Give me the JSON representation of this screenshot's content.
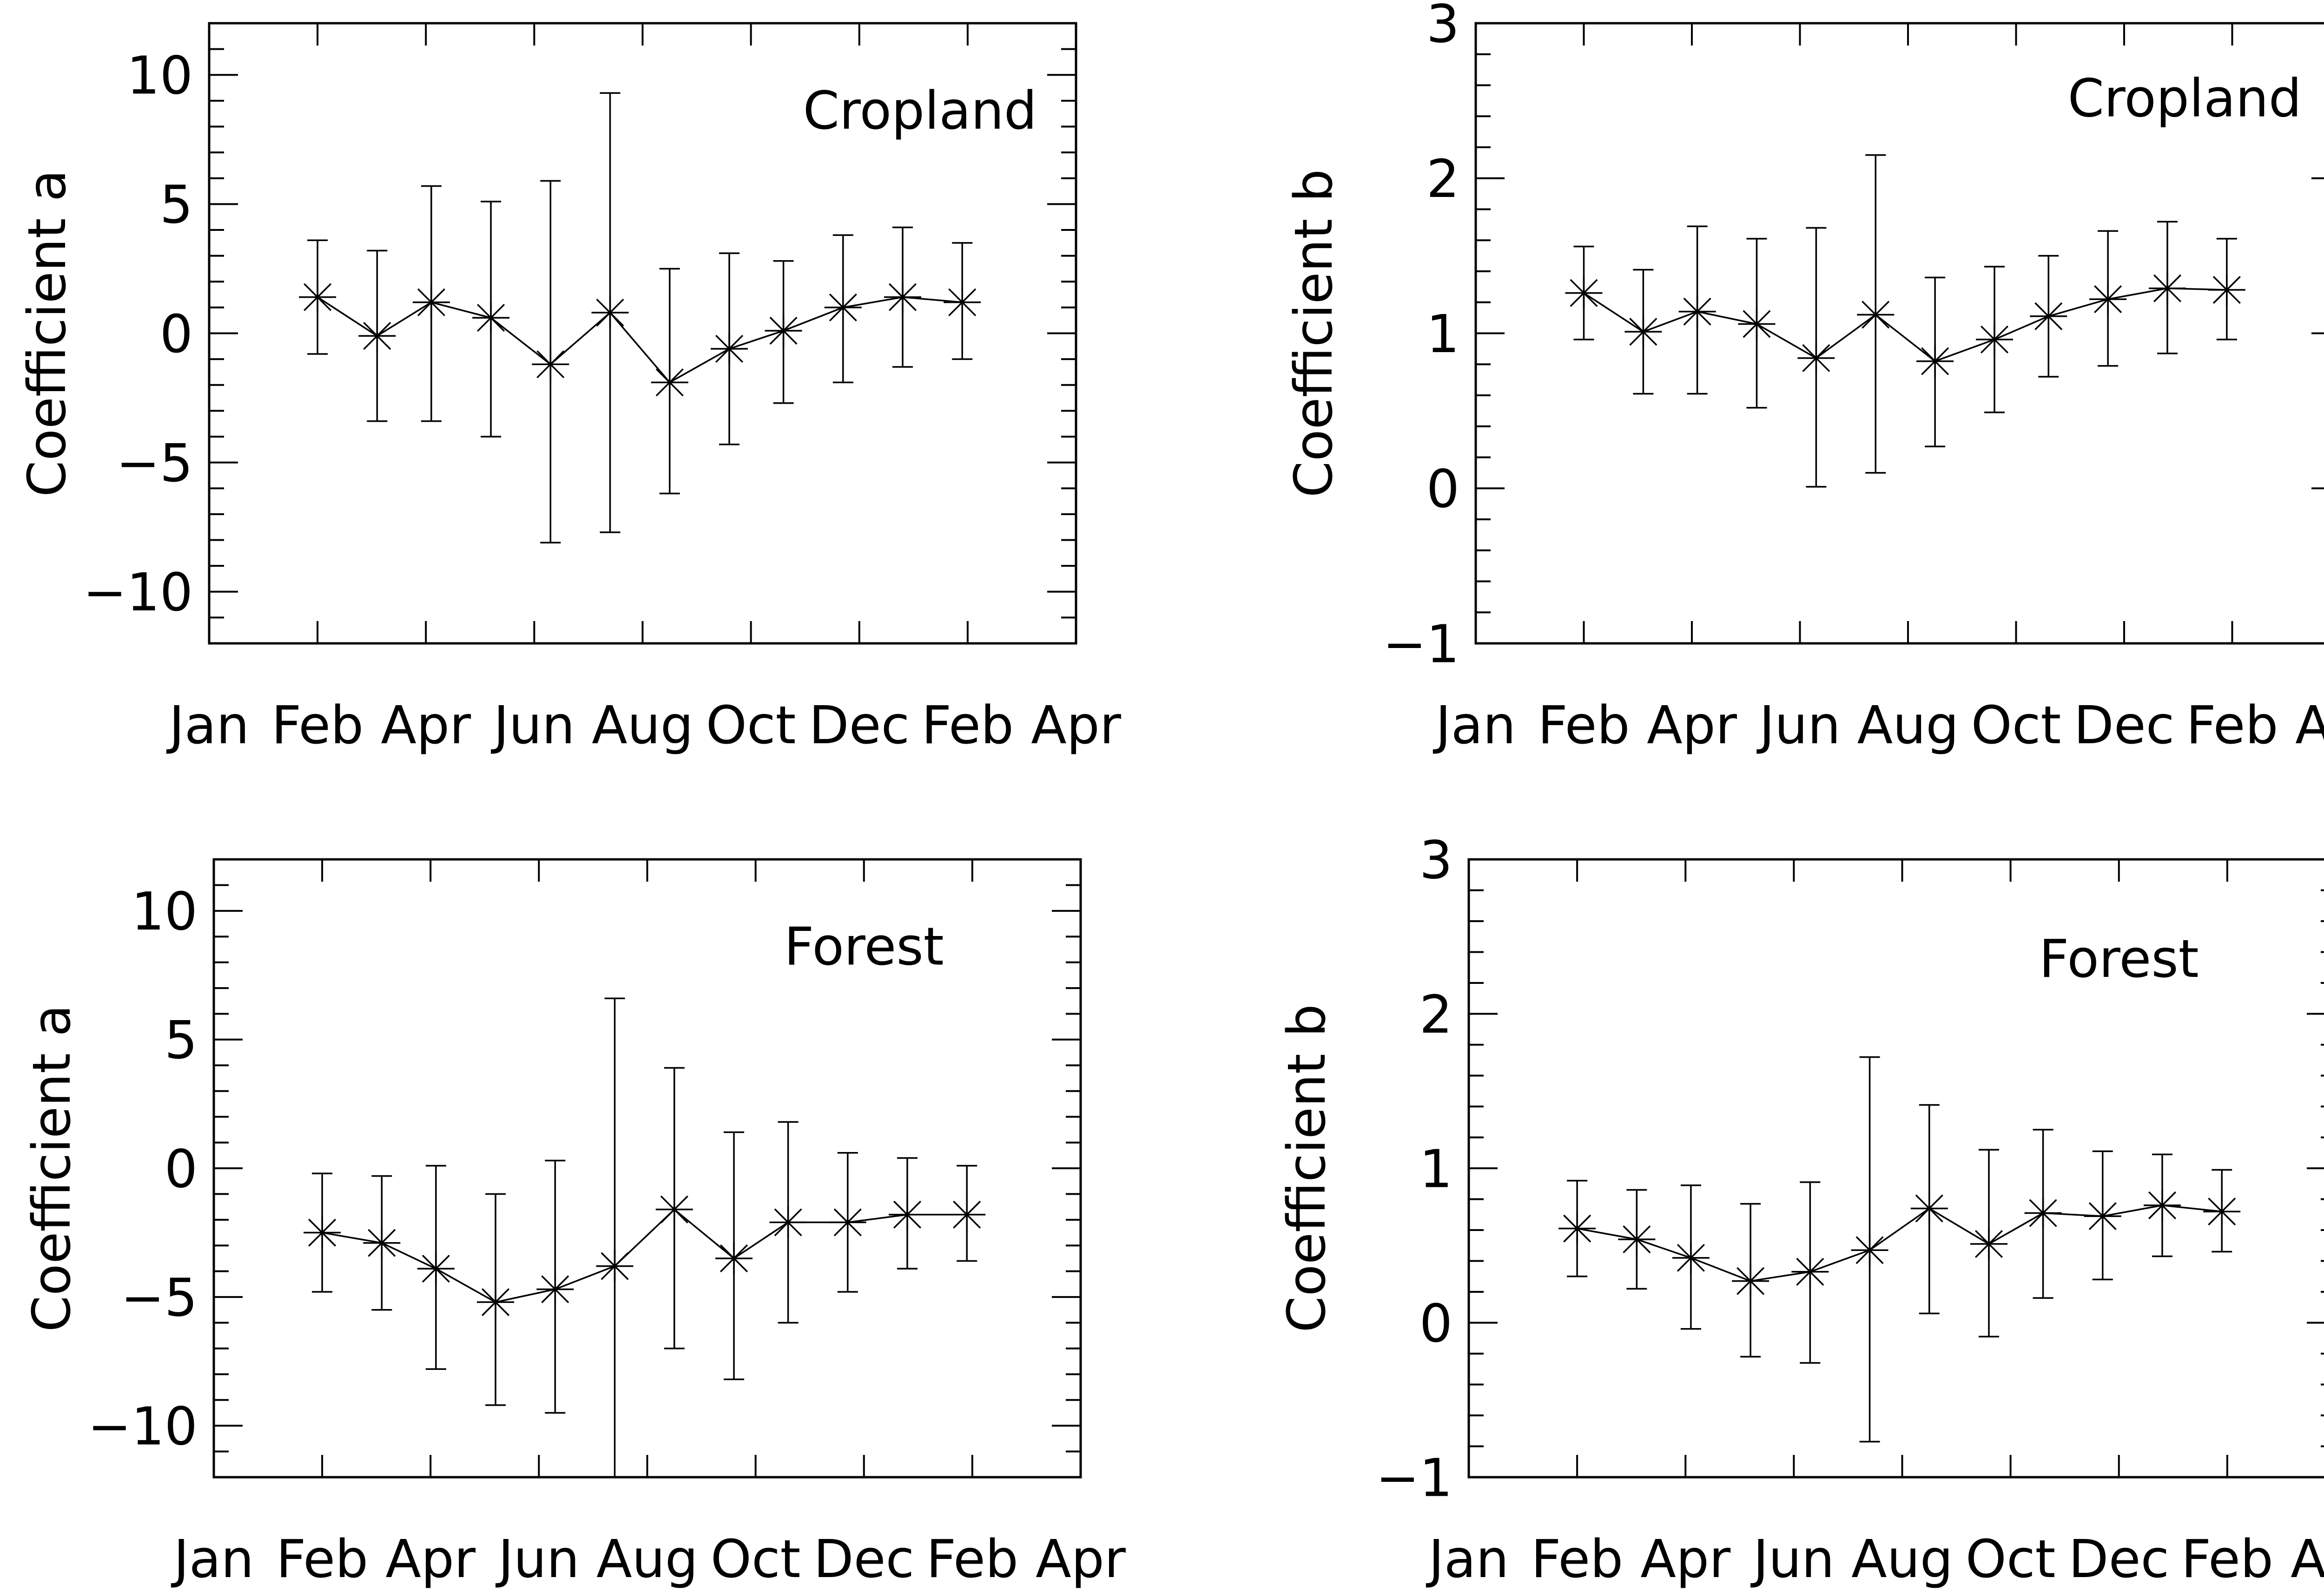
{
  "chart_data": [
    {
      "type": "line",
      "panel": "top-left",
      "title": "Cropland",
      "ylabel": "Coefficient a",
      "xlabel": "",
      "ylim": [
        -12,
        12
      ],
      "yticks": [
        -10,
        -5,
        0,
        5,
        10
      ],
      "ytick_labels": [
        "−10",
        "−5",
        "0",
        "5",
        "10"
      ],
      "y_minor_step": 1,
      "xlim": [
        0,
        16
      ],
      "xticks": [
        0,
        2,
        4,
        6,
        8,
        10,
        12,
        14,
        16
      ],
      "xtick_labels": [
        "Jan",
        "Feb",
        "Apr",
        "Jun",
        "Aug",
        "Oct",
        "Dec",
        "Feb",
        "Apr"
      ],
      "x": [
        2,
        3.1,
        4.1,
        5.2,
        6.3,
        7.4,
        8.5,
        9.6,
        10.6,
        11.7,
        12.8,
        13.9
      ],
      "values": [
        1.4,
        -0.1,
        1.2,
        0.6,
        -1.2,
        0.8,
        -1.9,
        -0.6,
        0.1,
        1.0,
        1.4,
        1.2
      ],
      "err_low": [
        -0.8,
        -3.4,
        -3.4,
        -4.0,
        -8.1,
        -7.7,
        -6.2,
        -4.3,
        -2.7,
        -1.9,
        -1.3,
        -1.0
      ],
      "err_high": [
        3.6,
        3.2,
        5.7,
        5.1,
        5.9,
        9.3,
        2.5,
        3.1,
        2.8,
        3.8,
        4.1,
        3.5
      ],
      "marker": "asterisk",
      "legend": "none"
    },
    {
      "type": "line",
      "panel": "top-right",
      "title": "Cropland",
      "ylabel": "Coefficient b",
      "xlabel": "",
      "ylim": [
        -1,
        3
      ],
      "yticks": [
        -1,
        0,
        1,
        2,
        3
      ],
      "ytick_labels": [
        "−1",
        "0",
        "1",
        "2",
        "3"
      ],
      "y_minor_step": 0.2,
      "xlim": [
        0,
        16
      ],
      "xticks": [
        0,
        2,
        4,
        6,
        8,
        10,
        12,
        14,
        16
      ],
      "xtick_labels": [
        "Jan",
        "Feb",
        "Apr",
        "Jun",
        "Aug",
        "Oct",
        "Dec",
        "Feb",
        "Apr"
      ],
      "x": [
        2,
        3.1,
        4.1,
        5.2,
        6.3,
        7.4,
        8.5,
        9.6,
        10.6,
        11.7,
        12.8,
        13.9
      ],
      "values": [
        1.26,
        1.01,
        1.14,
        1.06,
        0.84,
        1.12,
        0.82,
        0.96,
        1.11,
        1.22,
        1.29,
        1.28
      ],
      "err_low": [
        0.96,
        0.61,
        0.61,
        0.52,
        0.01,
        0.1,
        0.27,
        0.49,
        0.72,
        0.79,
        0.87,
        0.96
      ],
      "err_high": [
        1.56,
        1.41,
        1.69,
        1.61,
        1.68,
        2.15,
        1.36,
        1.43,
        1.5,
        1.66,
        1.72,
        1.61
      ],
      "marker": "asterisk",
      "legend": "none"
    },
    {
      "type": "line",
      "panel": "bottom-left",
      "title": "Forest",
      "ylabel": "Coefficient a",
      "xlabel": "",
      "ylim": [
        -12,
        12
      ],
      "yticks": [
        -10,
        -5,
        0,
        5,
        10
      ],
      "ytick_labels": [
        "−10",
        "−5",
        "0",
        "5",
        "10"
      ],
      "y_minor_step": 1,
      "xlim": [
        0,
        16
      ],
      "xticks": [
        0,
        2,
        4,
        6,
        8,
        10,
        12,
        14,
        16
      ],
      "xtick_labels": [
        "Jan",
        "Feb",
        "Apr",
        "Jun",
        "Aug",
        "Oct",
        "Dec",
        "Feb",
        "Apr"
      ],
      "x": [
        2,
        3.1,
        4.1,
        5.2,
        6.3,
        7.4,
        8.5,
        9.6,
        10.6,
        11.7,
        12.8,
        13.9
      ],
      "values": [
        -2.5,
        -2.9,
        -3.9,
        -5.2,
        -4.7,
        -3.8,
        -1.6,
        -3.5,
        -2.1,
        -2.1,
        -1.8,
        -1.8
      ],
      "err_low": [
        -4.8,
        -5.5,
        -7.8,
        -9.2,
        -9.5,
        -12.0,
        -7.0,
        -8.2,
        -6.0,
        -4.8,
        -3.9,
        -3.6
      ],
      "err_high": [
        -0.2,
        -0.3,
        0.1,
        -1.0,
        0.3,
        6.6,
        3.9,
        1.4,
        1.8,
        0.6,
        0.4,
        0.1
      ],
      "marker": "asterisk",
      "legend": "none"
    },
    {
      "type": "line",
      "panel": "bottom-right",
      "title": "Forest",
      "ylabel": "Coefficient b",
      "xlabel": "",
      "ylim": [
        -1,
        3
      ],
      "yticks": [
        -1,
        0,
        1,
        2,
        3
      ],
      "ytick_labels": [
        "−1",
        "0",
        "1",
        "2",
        "3"
      ],
      "y_minor_step": 0.2,
      "xlim": [
        0,
        16
      ],
      "xticks": [
        0,
        2,
        4,
        6,
        8,
        10,
        12,
        14,
        16
      ],
      "xtick_labels": [
        "Jan",
        "Feb",
        "Apr",
        "Jun",
        "Aug",
        "Oct",
        "Dec",
        "Feb",
        "Apr"
      ],
      "x": [
        2,
        3.1,
        4.1,
        5.2,
        6.3,
        7.4,
        8.5,
        9.6,
        10.6,
        11.7,
        12.8,
        13.9
      ],
      "values": [
        0.61,
        0.54,
        0.42,
        0.27,
        0.33,
        0.47,
        0.74,
        0.51,
        0.71,
        0.69,
        0.76,
        0.72
      ],
      "err_low": [
        0.3,
        0.22,
        -0.04,
        -0.22,
        -0.26,
        -0.77,
        0.06,
        -0.09,
        0.16,
        0.28,
        0.43,
        0.46
      ],
      "err_high": [
        0.92,
        0.86,
        0.89,
        0.77,
        0.91,
        1.72,
        1.41,
        1.12,
        1.25,
        1.11,
        1.09,
        0.99
      ],
      "marker": "asterisk",
      "legend": "none"
    }
  ]
}
